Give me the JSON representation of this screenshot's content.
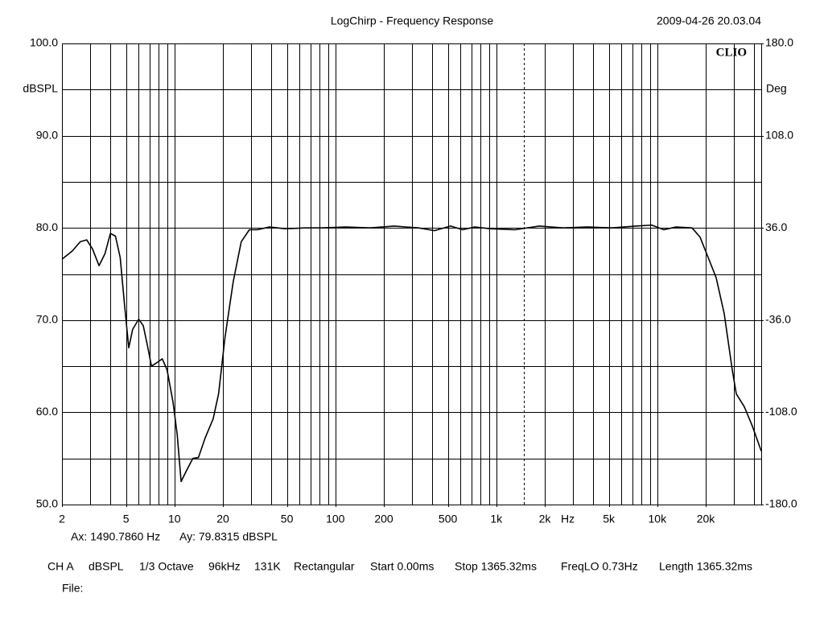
{
  "chart_data": {
    "type": "line",
    "title": "LogChirp - Frequency Response",
    "timestamp": "2009-04-26 20.03.04",
    "logo": "CLIO",
    "ylabel": "dBSPL",
    "y2label": "Deg",
    "xlabel": "Hz",
    "log_x": true,
    "grid": true,
    "color": "#000000",
    "xlim": [
      2,
      44260
    ],
    "ylim": [
      50,
      100
    ],
    "y2lim": [
      -180,
      180
    ],
    "xticks": [
      2,
      5,
      10,
      20,
      50,
      100,
      200,
      500,
      {
        "value": 1000,
        "label": "1k"
      },
      {
        "value": 2000,
        "label": "2k"
      },
      {
        "value": 5000,
        "label": "5k"
      },
      {
        "value": 10000,
        "label": "10k"
      },
      {
        "value": 20000,
        "label": "20k"
      }
    ],
    "xgrid": [
      2,
      3,
      4,
      5,
      6,
      7,
      8,
      9,
      10,
      20,
      30,
      40,
      50,
      60,
      70,
      80,
      90,
      100,
      200,
      300,
      400,
      500,
      600,
      700,
      800,
      900,
      1000,
      2000,
      3000,
      4000,
      5000,
      6000,
      7000,
      8000,
      9000,
      10000,
      20000,
      30000,
      40000
    ],
    "yticks": [
      {
        "value": 100,
        "label": "100.0"
      },
      {
        "value": 90,
        "label": "90.0"
      },
      {
        "value": 80,
        "label": "80.0"
      },
      {
        "value": 70,
        "label": "70.0"
      },
      {
        "value": 60,
        "label": "60.0"
      },
      {
        "value": 50,
        "label": "50.0"
      }
    ],
    "minor_yticks": [
      95,
      85,
      75,
      65,
      55
    ],
    "y2ticks": [
      {
        "value": 180,
        "label": "180.0"
      },
      {
        "value": 108,
        "label": "108.0"
      },
      {
        "value": 36,
        "label": "36.0"
      },
      {
        "value": -36,
        "label": "-36.0"
      },
      {
        "value": -108,
        "label": "-108.0"
      },
      {
        "value": -180,
        "label": "-180.0"
      }
    ],
    "cursor_x": 1490.786,
    "cursor_labels": [
      "Ax: 1490.7860 Hz",
      "Ay: 79.8315 dBSPL"
    ],
    "footer": [
      "CH A",
      "dBSPL",
      "1/3 Octave",
      "96kHz",
      "131K",
      "Rectangular",
      "Start 0.00ms",
      "Stop 1365.32ms",
      "FreqLO 0.73Hz",
      "Length 1365.32ms"
    ],
    "file_label": "File:",
    "x": [
      2,
      2.32,
      2.6,
      2.85,
      3.1,
      3.4,
      3.7,
      4.0,
      4.3,
      4.6,
      4.9,
      5.2,
      5.5,
      6.0,
      6.4,
      6.8,
      7.2,
      7.8,
      8.4,
      9.0,
      9.8,
      10.4,
      11.0,
      11.9,
      13.0,
      14.1,
      15.5,
      17.4,
      18.8,
      20.6,
      23.2,
      26.0,
      29.2,
      32.7,
      38.9,
      49,
      65,
      82,
      116,
      164,
      232,
      328,
      413,
      520,
      618,
      734,
      924,
      1306,
      1845,
      2606,
      3681,
      5200,
      7345,
      9247,
      10990,
      13060,
      16440,
      18450,
      20700,
      23220,
      26060,
      29240,
      30970,
      34750,
      38990,
      44260
    ],
    "values": [
      76.6,
      77.5,
      78.5,
      78.7,
      77.7,
      75.9,
      77.2,
      79.4,
      79.1,
      76.8,
      71.6,
      67.0,
      69.0,
      70.1,
      69.4,
      67.2,
      65.0,
      65.4,
      65.8,
      64.6,
      61.1,
      57.6,
      52.5,
      53.7,
      55.0,
      55.1,
      57.2,
      59.3,
      62.0,
      68.1,
      74.2,
      78.5,
      79.8,
      79.8,
      80.1,
      79.9,
      80.0,
      80.0,
      80.1,
      80.0,
      80.2,
      80.0,
      79.7,
      80.2,
      79.8,
      80.1,
      79.9,
      79.8,
      80.2,
      80.0,
      80.1,
      80.0,
      80.2,
      80.3,
      79.8,
      80.1,
      80.0,
      79.0,
      76.8,
      74.6,
      70.7,
      64.6,
      62.0,
      60.6,
      58.5,
      55.8
    ]
  }
}
